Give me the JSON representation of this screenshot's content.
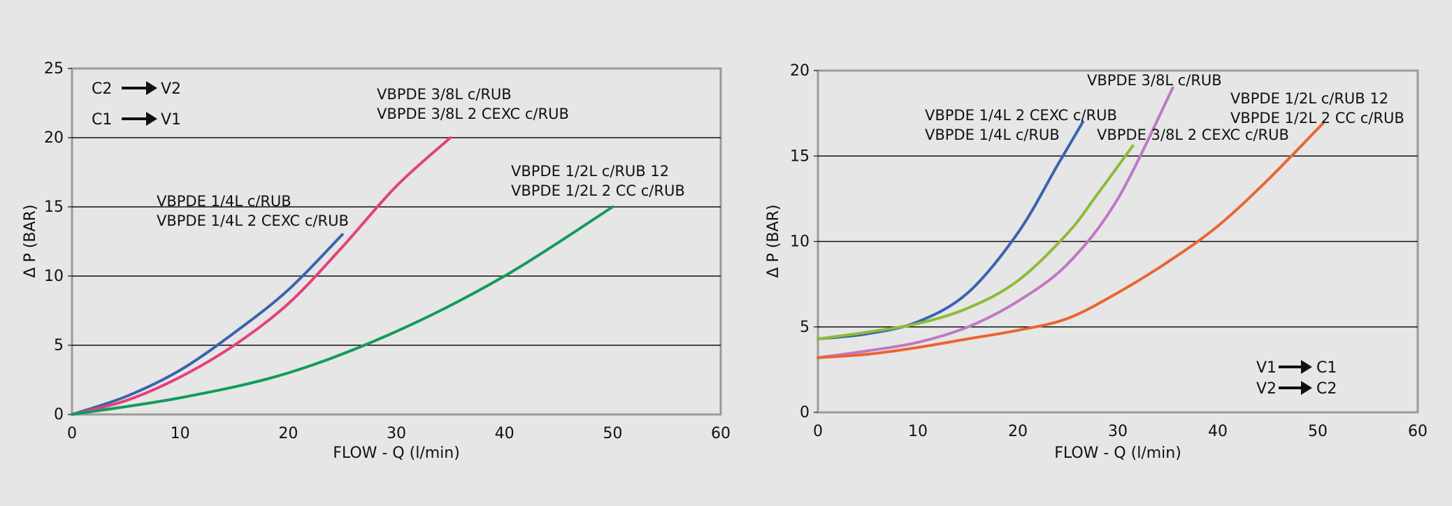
{
  "chart_data": [
    {
      "type": "line",
      "xlabel": "FLOW - Q (l/min)",
      "ylabel": "Δ P (BAR)",
      "xlim": [
        0,
        60
      ],
      "ylim": [
        0,
        25
      ],
      "x_ticks": [
        0,
        10,
        20,
        30,
        40,
        50,
        60
      ],
      "y_ticks": [
        0,
        5,
        10,
        15,
        20,
        25
      ],
      "grid": "horizontal",
      "colors": {
        "blue": "#3a64ad",
        "pink": "#e4417a",
        "green": "#129b5b"
      },
      "direction_labels": [
        {
          "from": "C2",
          "to": "V2"
        },
        {
          "from": "C1",
          "to": "V1"
        }
      ],
      "series": [
        {
          "color": "#3a64ad",
          "x": [
            0,
            5,
            10,
            15,
            20,
            25
          ],
          "y": [
            0,
            1.3,
            3.2,
            5.9,
            9.0,
            13.0
          ]
        },
        {
          "color": "#e4417a",
          "x": [
            0,
            5,
            10,
            15,
            20,
            25,
            30,
            35
          ],
          "y": [
            0,
            1.0,
            2.7,
            5.0,
            8.0,
            12.1,
            16.5,
            20.0
          ]
        },
        {
          "color": "#129b5b",
          "x": [
            0,
            10,
            20,
            30,
            40,
            50
          ],
          "y": [
            0,
            1.2,
            3.0,
            6.0,
            10.0,
            15.0
          ]
        }
      ],
      "annotations": [
        {
          "lines": [
            "VBPDE 3/8L c/RUB",
            "VBPDE 3/8L 2 CEXC c/RUB"
          ]
        },
        {
          "lines": [
            "VBPDE 1/2L c/RUB 12",
            "VBPDE 1/2L 2 CC c/RUB"
          ]
        },
        {
          "lines": [
            "VBPDE 1/4L c/RUB",
            "VBPDE 1/4L 2 CEXC c/RUB"
          ]
        }
      ]
    },
    {
      "type": "line",
      "xlabel": "FLOW - Q (l/min)",
      "ylabel": "Δ P (BAR)",
      "xlim": [
        0,
        60
      ],
      "ylim": [
        0,
        20
      ],
      "x_ticks": [
        0,
        10,
        20,
        30,
        40,
        50,
        60
      ],
      "y_ticks": [
        0,
        5,
        10,
        15,
        20
      ],
      "grid": "horizontal",
      "colors": {
        "blue": "#3a64ad",
        "green": "#8dbb38",
        "violet": "#bf78c6",
        "orange": "#ec6432"
      },
      "direction_labels": [
        {
          "from": "V1",
          "to": "C1"
        },
        {
          "from": "V2",
          "to": "C2"
        }
      ],
      "series": [
        {
          "color": "#3a64ad",
          "x": [
            0,
            5,
            10,
            15,
            20,
            24,
            26.5
          ],
          "y": [
            4.3,
            4.6,
            5.3,
            7.0,
            10.5,
            14.5,
            17.0
          ]
        },
        {
          "color": "#8dbb38",
          "x": [
            0,
            5,
            10,
            15,
            20,
            25,
            28,
            31.5
          ],
          "y": [
            4.3,
            4.7,
            5.2,
            6.1,
            7.7,
            10.5,
            12.8,
            15.6
          ]
        },
        {
          "color": "#bf78c6",
          "x": [
            0,
            5,
            10,
            15,
            20,
            25,
            30,
            35.5
          ],
          "y": [
            3.2,
            3.6,
            4.1,
            5.0,
            6.5,
            8.7,
            12.5,
            19.0
          ]
        },
        {
          "color": "#ec6432",
          "x": [
            0,
            5,
            10,
            15,
            20,
            25,
            30,
            35,
            40,
            45,
            50.5
          ],
          "y": [
            3.2,
            3.4,
            3.8,
            4.3,
            4.8,
            5.5,
            7.0,
            8.8,
            10.9,
            13.6,
            16.9
          ]
        }
      ],
      "annotations": [
        {
          "lines": [
            "VBPDE 3/8L c/RUB"
          ]
        },
        {
          "lines": [
            "VBPDE 1/4L 2 CEXC c/RUB",
            "VBPDE 1/4L c/RUB"
          ]
        },
        {
          "lines": [
            "VBPDE 3/8L 2 CEXC c/RUB"
          ]
        },
        {
          "lines": [
            "VBPDE 1/2L c/RUB 12",
            "VBPDE 1/2L 2 CC c/RUB"
          ]
        }
      ]
    }
  ]
}
